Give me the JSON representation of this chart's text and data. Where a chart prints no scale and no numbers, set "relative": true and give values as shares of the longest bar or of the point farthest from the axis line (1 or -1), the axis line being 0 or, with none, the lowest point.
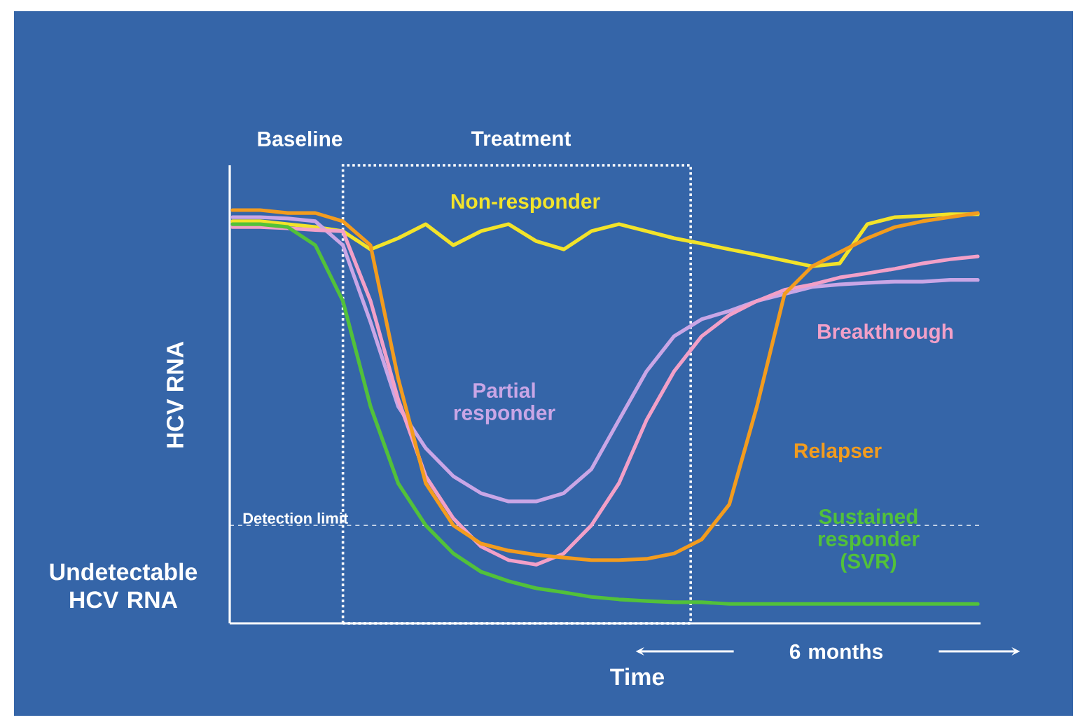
{
  "chart_data": {
    "type": "line",
    "relative": true,
    "tick_labels": false,
    "xlabel": "Time",
    "ylabel": "HCV RNA",
    "categories": [
      null,
      null,
      null,
      null,
      null,
      null,
      null,
      null,
      null,
      null,
      null,
      null,
      null,
      null,
      null,
      null,
      null,
      null,
      null,
      null,
      null,
      null,
      null,
      null,
      null,
      null,
      null,
      null
    ],
    "series": [
      {
        "name": "Non-responder",
        "color": "#f2e32a",
        "values": [
          0.973,
          0.973,
          0.966,
          0.959,
          0.949,
          0.905,
          0.932,
          0.966,
          0.915,
          0.949,
          0.966,
          0.925,
          0.905,
          0.949,
          0.966,
          0.949,
          0.932,
          0.919,
          0.905,
          0.892,
          0.878,
          0.864,
          0.871,
          0.966,
          0.983,
          0.986,
          0.99,
          0.99
        ]
      },
      {
        "name": "Partial responder",
        "color": "#c9a6e6",
        "values": [
          0.983,
          0.983,
          0.98,
          0.973,
          0.915,
          0.729,
          0.525,
          0.424,
          0.356,
          0.315,
          0.295,
          0.295,
          0.315,
          0.373,
          0.492,
          0.61,
          0.695,
          0.736,
          0.756,
          0.78,
          0.797,
          0.814,
          0.82,
          0.824,
          0.827,
          0.827,
          0.831,
          0.831
        ]
      },
      {
        "name": "Breakthrough",
        "color": "#f2a0c8",
        "values": [
          0.959,
          0.959,
          0.956,
          0.952,
          0.949,
          0.78,
          0.542,
          0.356,
          0.254,
          0.186,
          0.153,
          0.142,
          0.169,
          0.237,
          0.339,
          0.492,
          0.61,
          0.695,
          0.746,
          0.78,
          0.807,
          0.82,
          0.837,
          0.847,
          0.858,
          0.871,
          0.881,
          0.888
        ]
      },
      {
        "name": "Relapser",
        "color": "#f39c1e",
        "values": [
          1.0,
          1.0,
          0.993,
          0.993,
          0.973,
          0.915,
          0.593,
          0.339,
          0.237,
          0.193,
          0.176,
          0.166,
          0.159,
          0.153,
          0.153,
          0.156,
          0.169,
          0.203,
          0.288,
          0.525,
          0.797,
          0.864,
          0.898,
          0.932,
          0.959,
          0.973,
          0.983,
          0.993
        ]
      },
      {
        "name": "Sustained responder (SVR)",
        "color": "#52c13a",
        "values": [
          0.966,
          0.966,
          0.959,
          0.915,
          0.78,
          0.525,
          0.339,
          0.237,
          0.169,
          0.125,
          0.102,
          0.085,
          0.075,
          0.064,
          0.058,
          0.054,
          0.051,
          0.051,
          0.047,
          0.047,
          0.047,
          0.047,
          0.047,
          0.047,
          0.047,
          0.047,
          0.047,
          0.047
        ]
      }
    ],
    "ref_lines": [
      {
        "axis": "y",
        "value": 0.237,
        "label": "Detection limit",
        "color": "#ffffff",
        "line_style": "dashed"
      }
    ],
    "annotations": [
      "Baseline",
      "Undetectable HCV RNA",
      "6 months",
      "Treatment"
    ]
  }
}
